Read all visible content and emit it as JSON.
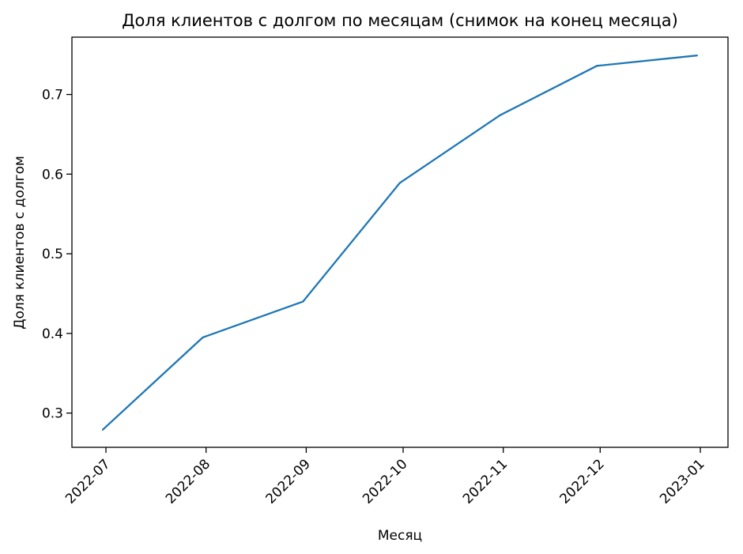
{
  "chart_data": {
    "type": "line",
    "title": "Доля клиентов с долгом по месяцам (снимок на конец месяца)",
    "xlabel": "Месяц",
    "ylabel": "Доля клиентов с долгом",
    "x": [
      "2022-06-30",
      "2022-07-31",
      "2022-08-31",
      "2022-09-30",
      "2022-10-31",
      "2022-11-30",
      "2022-12-31"
    ],
    "x_ticks": [
      "2022-07",
      "2022-08",
      "2022-09",
      "2022-10",
      "2022-11",
      "2022-12",
      "2023-01"
    ],
    "y_ticks": [
      0.3,
      0.4,
      0.5,
      0.6,
      0.7
    ],
    "ylim": [
      0.257,
      0.772
    ],
    "grid": false,
    "series": [
      {
        "values": [
          0.279,
          0.395,
          0.44,
          0.589,
          0.674,
          0.736,
          0.749
        ],
        "color": "#1f77b4"
      }
    ]
  }
}
